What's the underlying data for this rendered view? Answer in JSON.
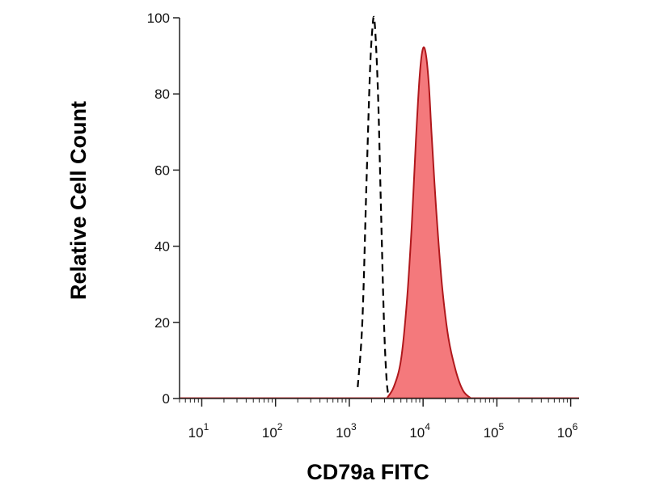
{
  "chart_data": {
    "type": "area",
    "title": "",
    "xlabel": "CD79a FITC",
    "ylabel": "Relative Cell Count",
    "x_scale": "log",
    "xlim": [
      5,
      1300000
    ],
    "ylim": [
      0,
      100
    ],
    "grid": false,
    "legend": "none",
    "y_ticks": [
      {
        "value": 0,
        "label": "0"
      },
      {
        "value": 20,
        "label": "20"
      },
      {
        "value": 40,
        "label": "40"
      },
      {
        "value": 60,
        "label": "60"
      },
      {
        "value": 80,
        "label": "80"
      },
      {
        "value": 100,
        "label": "100"
      }
    ],
    "x_ticks": [
      {
        "value": 10,
        "base": "10",
        "exp": "1"
      },
      {
        "value": 100,
        "base": "10",
        "exp": "2"
      },
      {
        "value": 1000,
        "base": "10",
        "exp": "3"
      },
      {
        "value": 10000,
        "base": "10",
        "exp": "4"
      },
      {
        "value": 100000,
        "base": "10",
        "exp": "5"
      },
      {
        "value": 1000000,
        "base": "10",
        "exp": "6"
      }
    ],
    "series": [
      {
        "style": "dashed",
        "color": "#000000",
        "x": [
          1300,
          1500,
          1700,
          1900,
          2050,
          2200,
          2450,
          2700,
          2950,
          3200,
          3450
        ],
        "y": [
          3,
          20,
          55,
          85,
          97,
          99,
          80,
          48,
          20,
          5,
          0
        ]
      },
      {
        "style": "filled",
        "color": "#b0181c",
        "fill": "#f4797c",
        "x": [
          3200,
          4000,
          5000,
          6000,
          7000,
          8000,
          9000,
          10000,
          11000,
          12000,
          13000,
          15000,
          18000,
          22000,
          28000,
          35000,
          45000
        ],
        "y": [
          0,
          3,
          10,
          25,
          45,
          68,
          85,
          92,
          90,
          82,
          70,
          50,
          30,
          16,
          7,
          2,
          0
        ]
      }
    ]
  }
}
